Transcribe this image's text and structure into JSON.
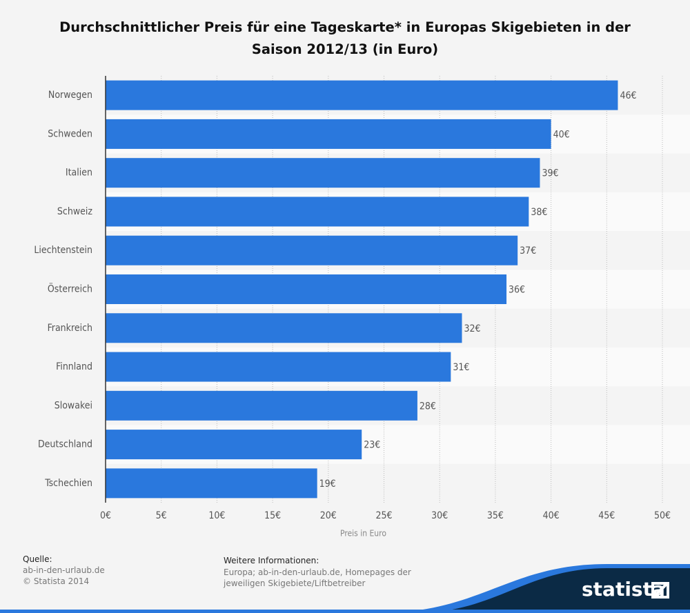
{
  "chart_data": {
    "type": "bar",
    "orientation": "horizontal",
    "title": "Durchschnittlicher Preis für eine Tageskarte* in Europas Skigebieten in der Saison 2012/13 (in Euro)",
    "categories": [
      "Norwegen",
      "Schweden",
      "Italien",
      "Schweiz",
      "Liechtenstein",
      "Österreich",
      "Frankreich",
      "Finnland",
      "Slowakei",
      "Deutschland",
      "Tschechien"
    ],
    "values": [
      46,
      40,
      39,
      38,
      37,
      36,
      32,
      31,
      28,
      23,
      19
    ],
    "value_labels": [
      "46€",
      "40€",
      "39€",
      "38€",
      "37€",
      "36€",
      "32€",
      "31€",
      "28€",
      "23€",
      "19€"
    ],
    "color": "#2a78dd",
    "x_label": "Preis in Euro",
    "xlim": [
      0,
      50
    ],
    "xticks": [
      {
        "value": 0,
        "label": "0€"
      },
      {
        "value": 5,
        "label": "5€"
      },
      {
        "value": 10,
        "label": "10€"
      },
      {
        "value": 15,
        "label": "15€"
      },
      {
        "value": 20,
        "label": "20€"
      },
      {
        "value": 25,
        "label": "25€"
      },
      {
        "value": 30,
        "label": "30€"
      },
      {
        "value": 35,
        "label": "35€"
      },
      {
        "value": 40,
        "label": "40€"
      },
      {
        "value": 45,
        "label": "45€"
      },
      {
        "value": 50,
        "label": "50€"
      }
    ],
    "grid": true
  },
  "footer": {
    "source_label": "Quelle:",
    "source": "ab-in-den-urlaub.de",
    "copyright": "© Statista 2014",
    "info_label": "Weitere Informationen:",
    "info": "Europa; ab-in-den-urlaub.de, Homepages der jeweiligen Skigebiete/Liftbetreiber",
    "logo": "statista"
  }
}
